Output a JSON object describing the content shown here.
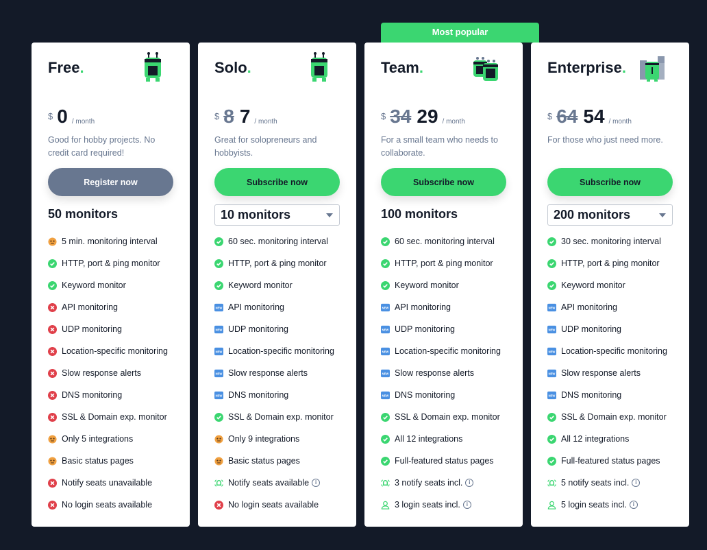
{
  "colors": {
    "background": "#131a28",
    "accent": "#3bd671",
    "muted": "#687790",
    "danger": "#e0404a",
    "new": "#4a90e2",
    "warn": "#f0a040"
  },
  "plans": [
    {
      "name": "Free",
      "dot": ".",
      "currency": "$",
      "old_price": "",
      "price": "0",
      "period": "/ month",
      "description": "Good for hobby projects. No credit card required!",
      "cta": "Register now",
      "monitors": "50 monitors",
      "monitors_selectable": false,
      "features": [
        {
          "icon": "meh-face-icon",
          "label": "5 min. monitoring interval"
        },
        {
          "icon": "check-icon",
          "label": "HTTP, port & ping monitor"
        },
        {
          "icon": "check-icon",
          "label": "Keyword monitor"
        },
        {
          "icon": "cross-icon",
          "label": "API monitoring"
        },
        {
          "icon": "cross-icon",
          "label": "UDP monitoring"
        },
        {
          "icon": "cross-icon",
          "label": "Location-specific monitoring"
        },
        {
          "icon": "cross-icon",
          "label": "Slow response alerts"
        },
        {
          "icon": "cross-icon",
          "label": "DNS monitoring"
        },
        {
          "icon": "cross-icon",
          "label": "SSL & Domain exp. monitor"
        },
        {
          "icon": "meh-face-icon",
          "label": "Only 5 integrations"
        },
        {
          "icon": "meh-face-icon",
          "label": "Basic status pages"
        },
        {
          "icon": "cross-icon",
          "label": "Notify seats unavailable"
        },
        {
          "icon": "cross-icon",
          "label": "No login seats available"
        }
      ]
    },
    {
      "name": "Solo",
      "dot": ".",
      "currency": "$",
      "old_price": "8",
      "price": "7",
      "period": "/ month",
      "description": "Great for solopreneurs and hobbyists.",
      "cta": "Subscribe now",
      "monitors": "10 monitors",
      "monitors_selectable": true,
      "features": [
        {
          "icon": "check-icon",
          "label": "60 sec. monitoring interval"
        },
        {
          "icon": "check-icon",
          "label": "HTTP, port & ping monitor"
        },
        {
          "icon": "check-icon",
          "label": "Keyword monitor"
        },
        {
          "icon": "new-icon",
          "label": "API monitoring"
        },
        {
          "icon": "new-icon",
          "label": "UDP monitoring"
        },
        {
          "icon": "new-icon",
          "label": "Location-specific monitoring"
        },
        {
          "icon": "new-icon",
          "label": "Slow response alerts"
        },
        {
          "icon": "new-icon",
          "label": "DNS monitoring"
        },
        {
          "icon": "check-icon",
          "label": "SSL & Domain exp. monitor"
        },
        {
          "icon": "meh-face-icon",
          "label": "Only 9 integrations"
        },
        {
          "icon": "meh-face-icon",
          "label": "Basic status pages"
        },
        {
          "icon": "bell-icon",
          "label": "Notify seats available",
          "info": true
        },
        {
          "icon": "cross-icon",
          "label": "No login seats available"
        }
      ]
    },
    {
      "name": "Team",
      "dot": ".",
      "badge": "Most popular",
      "currency": "$",
      "old_price": "34",
      "price": "29",
      "period": "/ month",
      "description": "For a small team who needs to collaborate.",
      "cta": "Subscribe now",
      "monitors": "100 monitors",
      "monitors_selectable": false,
      "features": [
        {
          "icon": "check-icon",
          "label": "60 sec. monitoring interval"
        },
        {
          "icon": "check-icon",
          "label": "HTTP, port & ping monitor"
        },
        {
          "icon": "check-icon",
          "label": "Keyword monitor"
        },
        {
          "icon": "new-icon",
          "label": "API monitoring"
        },
        {
          "icon": "new-icon",
          "label": "UDP monitoring"
        },
        {
          "icon": "new-icon",
          "label": "Location-specific monitoring"
        },
        {
          "icon": "new-icon",
          "label": "Slow response alerts"
        },
        {
          "icon": "new-icon",
          "label": "DNS monitoring"
        },
        {
          "icon": "check-icon",
          "label": "SSL & Domain exp. monitor"
        },
        {
          "icon": "check-icon",
          "label": "All 12 integrations"
        },
        {
          "icon": "check-icon",
          "label": "Full-featured status pages"
        },
        {
          "icon": "bell-icon",
          "label": "3 notify seats incl.",
          "info": true
        },
        {
          "icon": "user-icon",
          "label": "3 login seats incl.",
          "info": true
        }
      ]
    },
    {
      "name": "Enterprise",
      "dot": ".",
      "currency": "$",
      "old_price": "64",
      "price": "54",
      "period": "/ month",
      "description": "For those who just need more.",
      "cta": "Subscribe now",
      "monitors": "200 monitors",
      "monitors_selectable": true,
      "features": [
        {
          "icon": "check-icon",
          "label": "30 sec. monitoring interval"
        },
        {
          "icon": "check-icon",
          "label": "HTTP, port & ping monitor"
        },
        {
          "icon": "check-icon",
          "label": "Keyword monitor"
        },
        {
          "icon": "new-icon",
          "label": "API monitoring"
        },
        {
          "icon": "new-icon",
          "label": "UDP monitoring"
        },
        {
          "icon": "new-icon",
          "label": "Location-specific monitoring"
        },
        {
          "icon": "new-icon",
          "label": "Slow response alerts"
        },
        {
          "icon": "new-icon",
          "label": "DNS monitoring"
        },
        {
          "icon": "check-icon",
          "label": "SSL & Domain exp. monitor"
        },
        {
          "icon": "check-icon",
          "label": "All 12 integrations"
        },
        {
          "icon": "check-icon",
          "label": "Full-featured status pages"
        },
        {
          "icon": "bell-icon",
          "label": "5 notify seats incl.",
          "info": true
        },
        {
          "icon": "user-icon",
          "label": "5 login seats incl.",
          "info": true
        }
      ]
    }
  ],
  "info_glyph": "i"
}
